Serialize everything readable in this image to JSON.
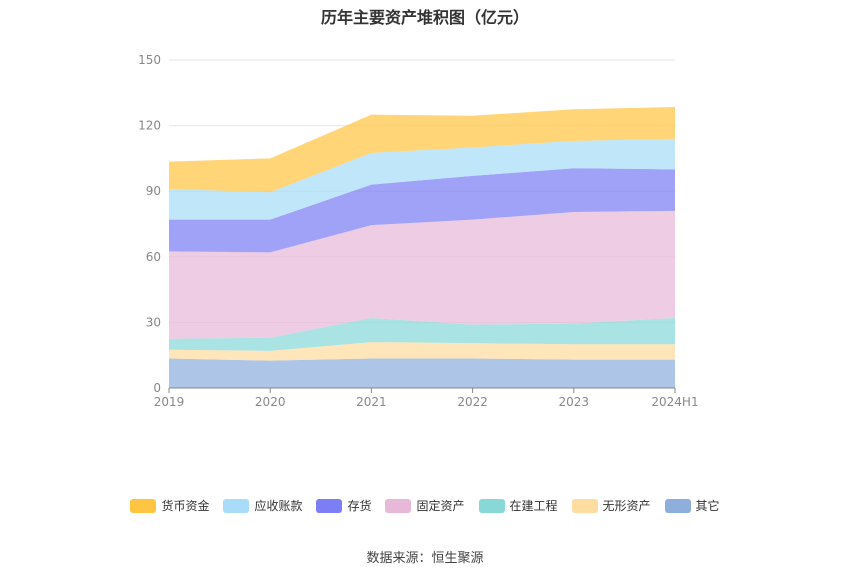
{
  "source": "数据来源：恒生聚源",
  "chart_data": {
    "type": "area",
    "stacked": true,
    "title": "历年主要资产堆积图（亿元）",
    "xlabel": "",
    "ylabel": "",
    "categories": [
      "2019",
      "2020",
      "2021",
      "2022",
      "2023",
      "2024H1"
    ],
    "ylim": [
      0,
      150
    ],
    "yticks": [
      0,
      30,
      60,
      90,
      120,
      150
    ],
    "grid": true,
    "legend_position": "bottom",
    "series": [
      {
        "name": "其它",
        "color": "#8eaedc",
        "values": [
          13.5,
          12.5,
          13.5,
          13.5,
          13.0,
          13.0
        ]
      },
      {
        "name": "无形资产",
        "color": "#ffdca0",
        "values": [
          4.0,
          4.5,
          7.5,
          7.0,
          7.0,
          7.0
        ]
      },
      {
        "name": "在建工程",
        "color": "#88d8d8",
        "values": [
          5.0,
          6.0,
          11.0,
          8.5,
          9.5,
          12.0
        ]
      },
      {
        "name": "固定资产",
        "color": "#e8b8d8",
        "values": [
          40.0,
          39.0,
          42.5,
          48.0,
          51.0,
          49.0
        ]
      },
      {
        "name": "存货",
        "color": "#7b7ef5",
        "values": [
          14.5,
          15.0,
          18.5,
          20.0,
          20.0,
          19.0
        ]
      },
      {
        "name": "应收账款",
        "color": "#a8dcf8",
        "values": [
          14.0,
          12.5,
          14.5,
          13.0,
          12.5,
          14.0
        ]
      },
      {
        "name": "货币资金",
        "color": "#ffc542",
        "values": [
          12.5,
          15.5,
          17.5,
          14.5,
          14.5,
          14.5
        ]
      }
    ]
  }
}
